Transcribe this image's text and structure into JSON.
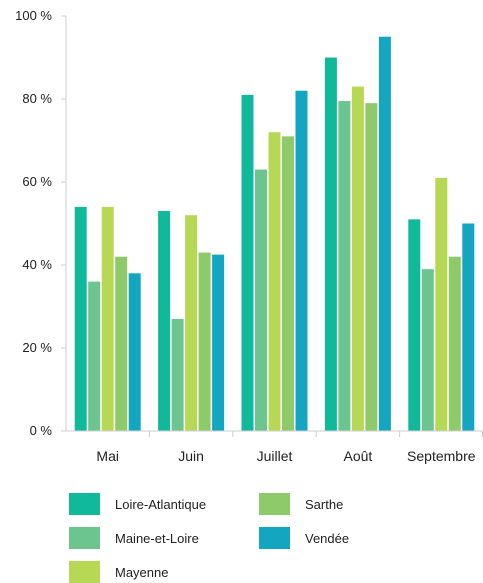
{
  "chart_data": {
    "type": "bar",
    "categories": [
      "Mai",
      "Juin",
      "Juillet",
      "Août",
      "Septembre"
    ],
    "series": [
      {
        "name": "Loire-Atlantique",
        "color": "#11b99b",
        "values": [
          54,
          53,
          81,
          90,
          51
        ]
      },
      {
        "name": "Maine-et-Loire",
        "color": "#6cc58e",
        "values": [
          36,
          27,
          63,
          79.5,
          39
        ]
      },
      {
        "name": "Mayenne",
        "color": "#b7d854",
        "values": [
          54,
          52,
          72,
          83,
          61
        ]
      },
      {
        "name": "Sarthe",
        "color": "#8ec96a",
        "values": [
          42,
          43,
          71,
          79,
          42
        ]
      },
      {
        "name": "Vendée",
        "color": "#14a5c1",
        "values": [
          38,
          42.5,
          82,
          95,
          50
        ]
      }
    ],
    "yticks": [
      0,
      20,
      40,
      60,
      80,
      100
    ],
    "ytick_labels": [
      "0 %",
      "20 %",
      "40 %",
      "60 %",
      "80 %",
      "100 %"
    ],
    "ylim": [
      0,
      100
    ],
    "grid": false,
    "legend_position": "bottom"
  }
}
